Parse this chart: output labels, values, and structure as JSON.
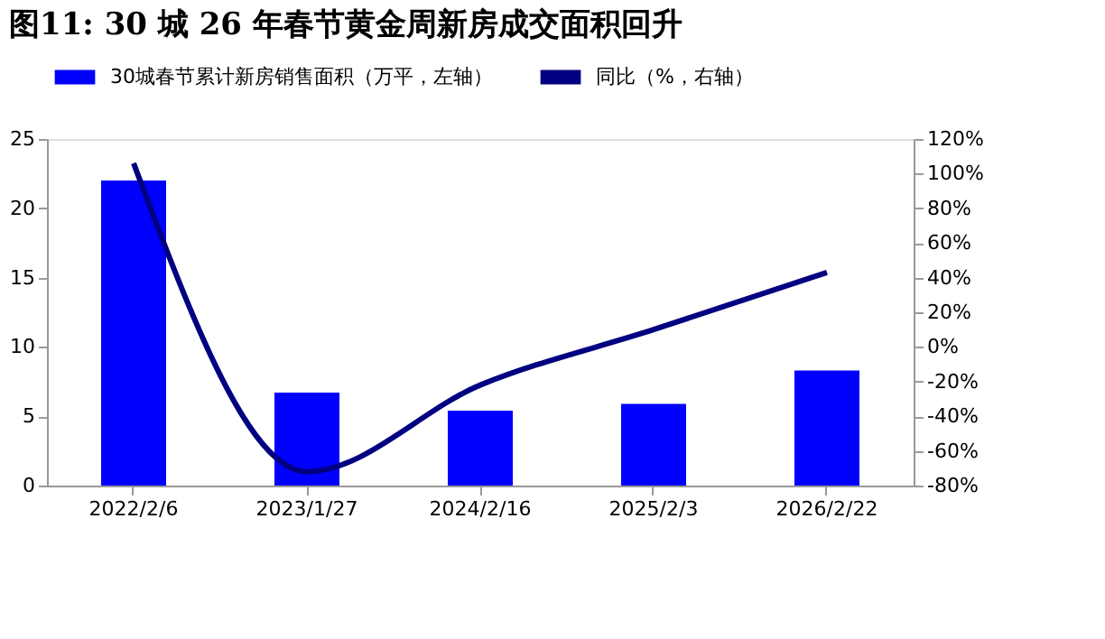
{
  "chart_data": {
    "type": "bar",
    "title": "图11:  30 城 26 年春节黄金周新房成交面积回升",
    "categories": [
      "2022/2/6",
      "2023/1/27",
      "2024/2/16",
      "2025/2/3",
      "2026/2/22"
    ],
    "series": [
      {
        "name": "30城春节累计新房销售面积（万平，左轴）",
        "color": "#0000ff",
        "values": [
          22.0,
          6.7,
          5.4,
          5.9,
          8.3
        ]
      },
      {
        "name": "同比（%，右轴）",
        "color": "#000080",
        "type": "line",
        "axis": "y2",
        "values": [
          106,
          -72,
          -22,
          10,
          43
        ]
      }
    ],
    "ylim": [
      0,
      25
    ],
    "yticks": [
      0,
      5,
      10,
      15,
      20,
      25
    ],
    "y2lim": [
      -80,
      120
    ],
    "y2ticks": [
      {
        "value": -80,
        "label": "-80%"
      },
      {
        "value": -60,
        "label": "-60%"
      },
      {
        "value": -40,
        "label": "-40%"
      },
      {
        "value": -20,
        "label": "-20%"
      },
      {
        "value": 0,
        "label": "0%"
      },
      {
        "value": 20,
        "label": "20%"
      },
      {
        "value": 40,
        "label": "40%"
      },
      {
        "value": 60,
        "label": "60%"
      },
      {
        "value": 80,
        "label": "80%"
      },
      {
        "value": 100,
        "label": "100%"
      },
      {
        "value": 120,
        "label": "120%"
      }
    ],
    "legend": "top",
    "grid": false
  }
}
